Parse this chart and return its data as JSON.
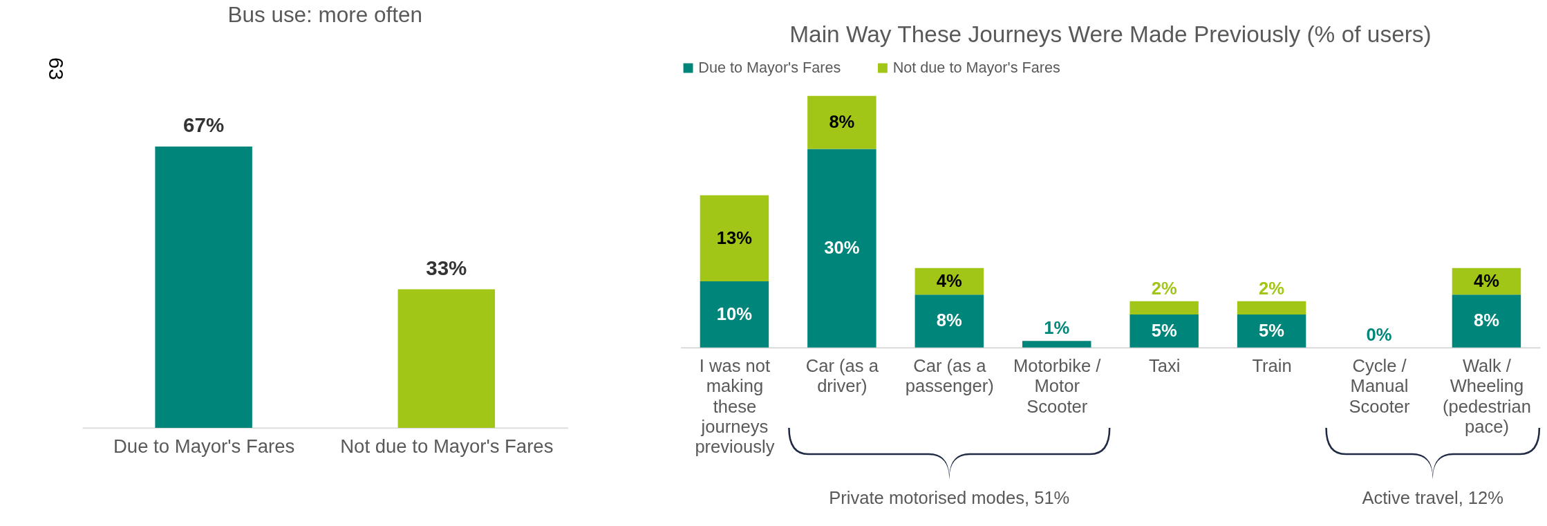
{
  "chart_data": [
    {
      "type": "bar",
      "title": "Bus use: more often",
      "categories": [
        "Due to Mayor's Fares",
        "Not due to Mayor's Fares"
      ],
      "values": [
        67,
        33
      ],
      "colors": [
        "#00857a",
        "#a2c617"
      ],
      "value_labels": [
        "67%",
        "33%"
      ],
      "annotations": [
        "63"
      ]
    },
    {
      "type": "bar",
      "stacked": true,
      "title": "Main Way These Journeys Were Made Previously (% of users)",
      "legend": "top",
      "categories": [
        "I was not making these journeys previously",
        "Car (as a driver)",
        "Car (as a passenger)",
        "Motorbike / Motor Scooter",
        "Taxi",
        "Train",
        "Cycle / Manual Scooter",
        "Walk / Wheeling (pedestrian pace)"
      ],
      "series": [
        {
          "name": "Due to Mayor's Fares",
          "color": "#00857a",
          "values": [
            10,
            30,
            8,
            1,
            5,
            5,
            0,
            8
          ],
          "value_labels": [
            "10%",
            "30%",
            "8%",
            "1%",
            "5%",
            "5%",
            "0%",
            "8%"
          ]
        },
        {
          "name": "Not due to Mayor's Fares",
          "color": "#a2c617",
          "values": [
            13,
            8,
            4,
            null,
            2,
            2,
            null,
            4
          ],
          "value_labels": [
            "13%",
            "8%",
            "4%",
            null,
            "2%",
            "2%",
            null,
            "4%"
          ]
        }
      ],
      "annotations": [
        "Private motorised modes, 51%",
        "Active travel, 12%"
      ]
    }
  ]
}
